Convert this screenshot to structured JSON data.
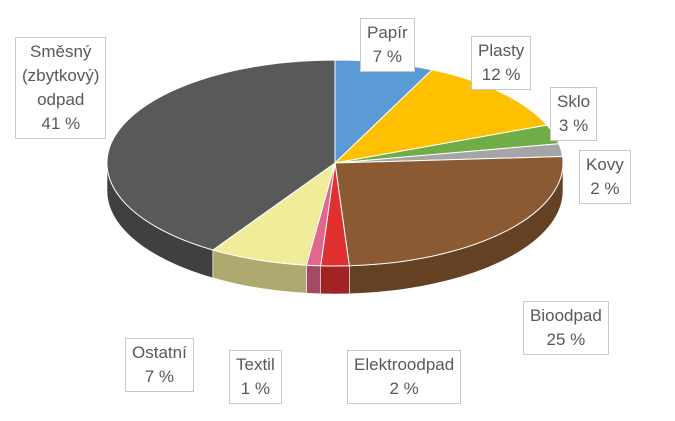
{
  "chart_data": {
    "type": "pie",
    "style": "3d",
    "categories": [
      "Papír",
      "Plasty",
      "Sklo",
      "Kovy",
      "Bioodpad",
      "Elektroodpad",
      "Textil",
      "Ostatní",
      "Směsný (zbytkový) odpad"
    ],
    "values": [
      7,
      12,
      3,
      2,
      25,
      2,
      1,
      7,
      41
    ],
    "value_labels": [
      "7 %",
      "12 %",
      "3 %",
      "2 %",
      "25 %",
      "2 %",
      "1 %",
      "7 %",
      "41 %"
    ],
    "colors": [
      "#5B9BD5",
      "#FFC000",
      "#70AD47",
      "#A5A5A5",
      "#8C5A32",
      "#E03030",
      "#E2678E",
      "#F1EC9A",
      "#595959"
    ],
    "labels": [
      {
        "name": [
          "Papír"
        ],
        "value": "7 %"
      },
      {
        "name": [
          "Plasty"
        ],
        "value": "12 %"
      },
      {
        "name": [
          "Sklo"
        ],
        "value": "3 %"
      },
      {
        "name": [
          "Kovy"
        ],
        "value": "2 %"
      },
      {
        "name": [
          "Bioodpad"
        ],
        "value": "25 %"
      },
      {
        "name": [
          "Elektroodpad"
        ],
        "value": "2 %"
      },
      {
        "name": [
          "Textil"
        ],
        "value": "1 %"
      },
      {
        "name": [
          "Ostatní"
        ],
        "value": "7 %"
      },
      {
        "name": [
          "Směsný",
          "(zbytkový)",
          "odpad"
        ],
        "value": "41 %"
      }
    ]
  }
}
